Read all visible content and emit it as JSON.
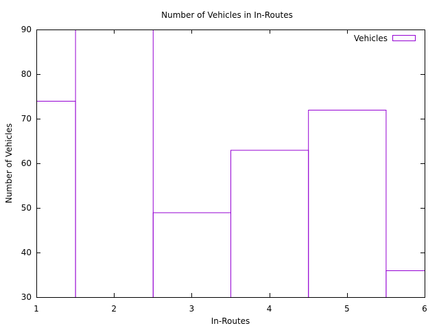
{
  "chart_data": {
    "type": "bar",
    "title": "Number of Vehicles in In-Routes",
    "xlabel": "In-Routes",
    "ylabel": "Number of Vehicles",
    "xlim": [
      1,
      6
    ],
    "ylim": [
      30,
      90
    ],
    "x_ticks": [
      1,
      2,
      3,
      4,
      5,
      6
    ],
    "y_ticks": [
      30,
      40,
      50,
      60,
      70,
      80,
      90
    ],
    "grid": false,
    "legend_position": "top-right",
    "series": [
      {
        "name": "Vehicles",
        "color": "#9400d3",
        "x": [
          1,
          2,
          3,
          4,
          5,
          6
        ],
        "values": [
          74,
          90,
          49,
          63,
          72,
          36
        ]
      }
    ]
  }
}
